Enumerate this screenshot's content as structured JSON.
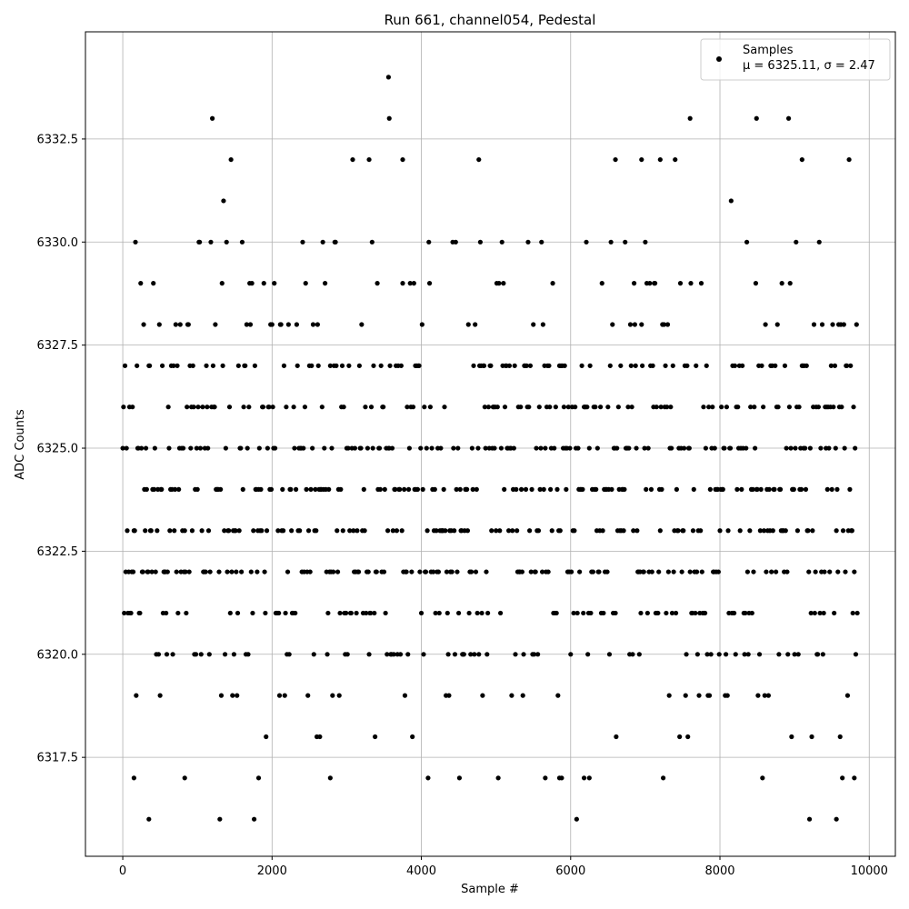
{
  "chart_data": {
    "type": "scatter",
    "title": "Run 661, channel054, Pedestal",
    "xlabel": "Sample #",
    "ylabel": "ADC Counts",
    "xlim": [
      -500,
      10350
    ],
    "ylim": [
      6315.1,
      6335.1
    ],
    "xticks": [
      0,
      2000,
      4000,
      6000,
      8000,
      10000
    ],
    "xtick_labels": [
      "0",
      "2000",
      "4000",
      "6000",
      "8000",
      "10000"
    ],
    "yticks": [
      6317.5,
      6320.0,
      6322.5,
      6325.0,
      6327.5,
      6330.0,
      6332.5
    ],
    "ytick_labels": [
      "6317.5",
      "6320.0",
      "6322.5",
      "6325.0",
      "6327.5",
      "6330.0",
      "6332.5"
    ],
    "grid": true,
    "legend_position": "top-right",
    "series": [
      {
        "name": "Samples",
        "stats_label": "μ = 6325.11, σ = 2.47",
        "color": "#000000",
        "x_start": 0,
        "x_step": 10,
        "count": 985,
        "levels": [
          6316,
          6317,
          6318,
          6319,
          6320,
          6321,
          6322,
          6323,
          6324,
          6325,
          6326,
          6327,
          6328,
          6329,
          6330,
          6331,
          6332,
          6333,
          6334
        ],
        "level_weights": [
          0.002,
          0.006,
          0.015,
          0.035,
          0.06,
          0.095,
          0.12,
          0.14,
          0.15,
          0.14,
          0.12,
          0.095,
          0.06,
          0.035,
          0.015,
          0.006,
          0.004,
          0.002,
          0.001
        ],
        "seed": 661,
        "outliers": [
          {
            "x": 350,
            "y": 6316
          },
          {
            "x": 9560,
            "y": 6316
          },
          {
            "x": 3560,
            "y": 6334
          },
          {
            "x": 3570,
            "y": 6333
          },
          {
            "x": 7600,
            "y": 6333
          },
          {
            "x": 8490,
            "y": 6333
          },
          {
            "x": 150,
            "y": 6317
          },
          {
            "x": 830,
            "y": 6317
          },
          {
            "x": 1820,
            "y": 6317
          },
          {
            "x": 2780,
            "y": 6317
          },
          {
            "x": 5660,
            "y": 6317
          },
          {
            "x": 5850,
            "y": 6317
          },
          {
            "x": 6180,
            "y": 6317
          },
          {
            "x": 6250,
            "y": 6317
          },
          {
            "x": 9800,
            "y": 6317
          },
          {
            "x": 3300,
            "y": 6332
          },
          {
            "x": 3750,
            "y": 6332
          },
          {
            "x": 4770,
            "y": 6332
          },
          {
            "x": 6600,
            "y": 6332
          },
          {
            "x": 6950,
            "y": 6332
          },
          {
            "x": 7200,
            "y": 6332
          },
          {
            "x": 9100,
            "y": 6332
          }
        ]
      }
    ]
  }
}
